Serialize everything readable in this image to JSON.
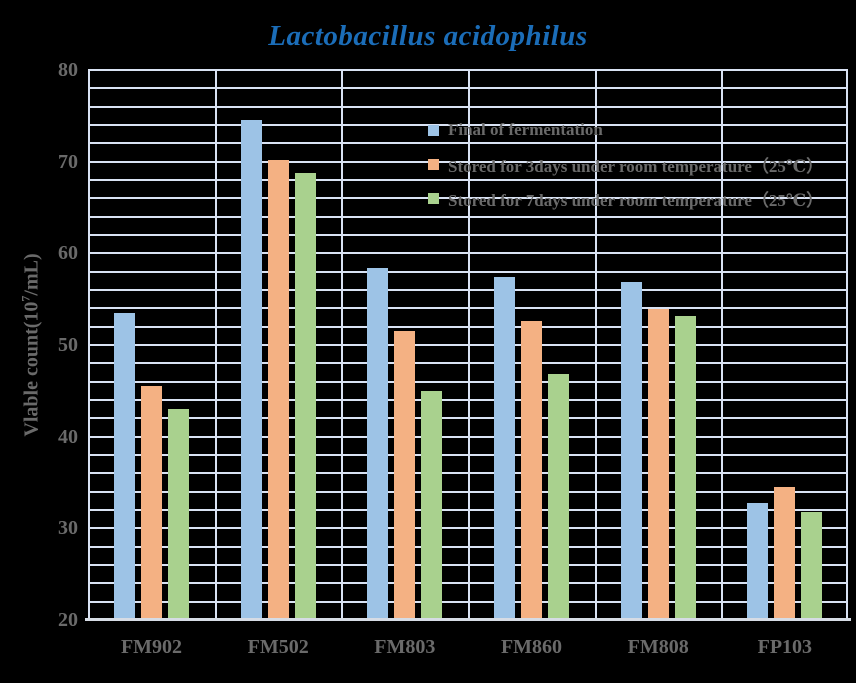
{
  "colors": {
    "background": "#000000",
    "title_blue": "#1B6DB8",
    "text_gray": "#6A6A6A",
    "gridline": "#D9E2F3",
    "axis_line": "#D6DCE5"
  },
  "chart_data": {
    "type": "bar",
    "title": "Lactobacillus acidophilus",
    "ylabel": "Vlable count(10⁷/mL)",
    "ylabel_prefix": "Vlable count(10",
    "ylabel_sup": "7",
    "ylabel_suffix": "/mL)",
    "xlabel": "",
    "ylim": [
      20,
      80
    ],
    "y_ticks": [
      20,
      30,
      40,
      50,
      60,
      70,
      80
    ],
    "gridline_step": 2,
    "grid": true,
    "legend_position": "top-right",
    "categories": [
      "FM902",
      "FM502",
      "FM803",
      "FM860",
      "FM808",
      "FP103"
    ],
    "series": [
      {
        "name": "Final of fermentation",
        "color": "#9DC3E6",
        "values": [
          53.5,
          74.6,
          58.4,
          57.4,
          56.9,
          32.8
        ]
      },
      {
        "name": "Stored for 3days under room temperature（25℃）",
        "color": "#F4B183",
        "values": [
          45.5,
          70.2,
          51.5,
          52.6,
          53.9,
          34.5
        ]
      },
      {
        "name": "Stored for 7days under room temperature（25℃）",
        "color": "#A9D18E",
        "values": [
          43.0,
          68.8,
          45.0,
          46.8,
          53.2,
          31.8
        ]
      }
    ]
  }
}
